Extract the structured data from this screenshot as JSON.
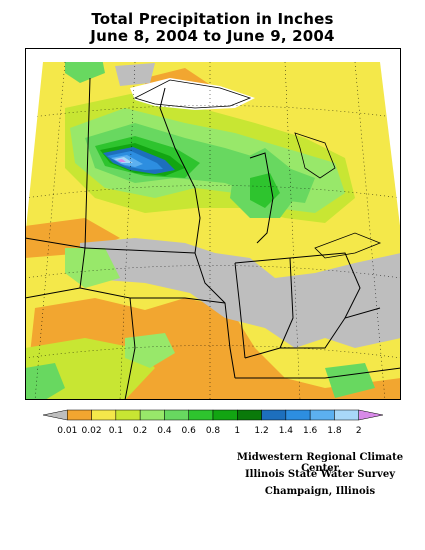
{
  "title": {
    "line1": "Total Precipitation in Inches",
    "line2": "June 8, 2004 to June 9, 2004"
  },
  "legend": {
    "labels": [
      "0.01",
      "0.02",
      "0.1",
      "0.2",
      "0.4",
      "0.6",
      "0.8",
      "1",
      "1.2",
      "1.4",
      "1.6",
      "1.8",
      "2"
    ],
    "colors": [
      "#bebebe",
      "#f2a630",
      "#f4e84a",
      "#c8e633",
      "#98e86a",
      "#68d860",
      "#2ec42e",
      "#12a512",
      "#0a7a0a",
      "#1d6fbd",
      "#2d8ee0",
      "#5cb0f0",
      "#a8d8f8",
      "#d88ae8"
    ]
  },
  "credits": {
    "line1": "Midwestern Regional Climate Center",
    "line2": "Illinois State Water Survey",
    "line3": "Champaign, Illinois"
  }
}
